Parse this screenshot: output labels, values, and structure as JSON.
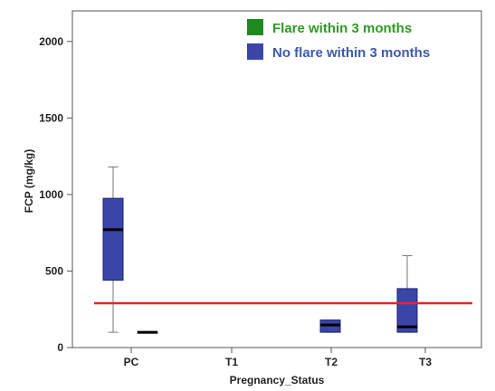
{
  "chart_data": {
    "type": "boxplot",
    "xlabel": "Pregnancy_Status",
    "ylabel": "FCP (mg/kg)",
    "categories": [
      "PC",
      "T1",
      "T2",
      "T3"
    ],
    "ylim": [
      0,
      2200
    ],
    "yticks": [
      0,
      500,
      1000,
      1500,
      2000
    ],
    "grid": false,
    "legend_position": "top-right",
    "series": [
      {
        "name": "Flare within 3 months",
        "color": "#1f8a1f",
        "label_color": "#2e9a22",
        "boxes": []
      },
      {
        "name": "No flare within 3 months",
        "color": "#3a45a8",
        "label_color": "#3d5aa8",
        "boxes": [
          {
            "category": "PC",
            "slot": 0,
            "whisker_low": 100,
            "q1": 440,
            "median": 770,
            "q3": 975,
            "whisker_high": 1180
          },
          {
            "category": "PC",
            "slot": 1,
            "whisker_low": 100,
            "q1": 100,
            "median": 100,
            "q3": 100,
            "whisker_high": 100
          },
          {
            "category": "T2",
            "slot": 0.5,
            "whisker_low": 100,
            "q1": 100,
            "median": 148,
            "q3": 180,
            "whisker_high": 180
          },
          {
            "category": "T3",
            "slot": 0,
            "whisker_low": 100,
            "q1": 100,
            "median": 135,
            "q3": 385,
            "whisker_high": 600
          }
        ]
      }
    ],
    "reference_line": {
      "y": 290,
      "color": "#ee2222"
    }
  }
}
